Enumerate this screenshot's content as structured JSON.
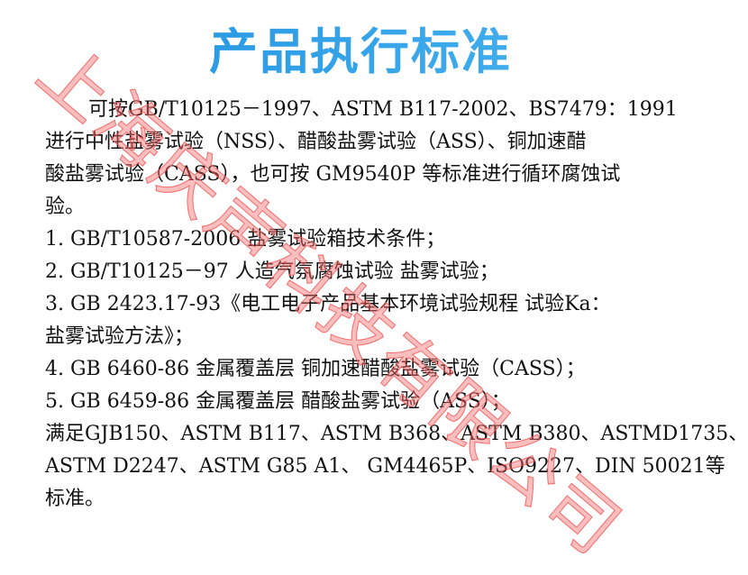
{
  "title": "产品执行标准",
  "lines": [
    "可按GB/T10125－1997、ASTM B117-2002、BS7479：1991",
    "进行中性盐雾试验（NSS）、醋酸盐雾试验（ASS）、铜加速醋",
    "酸盐雾试验（CASS），也可按 GM9540P 等标准进行循环腐蚀试",
    "验。",
    "1. GB/T10587-2006 盐雾试验箱技术条件；",
    "2. GB/T10125－97 人造气氛腐蚀试验 盐雾试验；",
    "3. GB 2423.17-93《电工电子产品基本环境试验规程 试验Ka：",
    "盐雾试验方法》；",
    "4. GB 6460-86 金属覆盖层 铜加速醋酸盐雾试验（CASS）；",
    "5. GB 6459-86 金属覆盖层 醋酸盐雾试验（ASS）；",
    "满足GJB150、ASTM B117、ASTM B368、ASTM B380、ASTMD1735、",
    "ASTM D2247、ASTM G85 A1、 GM4465P、ISO9227、DIN 50021等",
    "标准。"
  ],
  "watermark": "上海庆声科技有限公司",
  "colors": {
    "title": "#2a9be6",
    "watermark": "#f05a5a",
    "text": "#111111"
  }
}
